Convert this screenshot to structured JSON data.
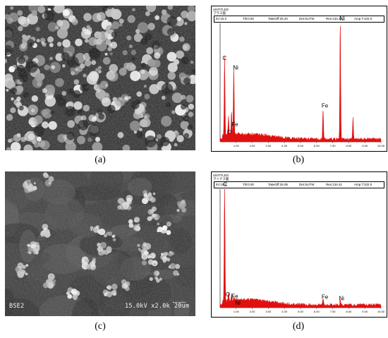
{
  "captions": {
    "a": "(a)",
    "b": "(b)",
    "c": "(c)",
    "d": "(d)"
  },
  "sem_c_overlay": {
    "detector": "BSE2",
    "info": "15.0kV x2.0k",
    "scale": "20um"
  },
  "spectrum_b": {
    "title": "UNTITLED",
    "subtitle": "プラス面",
    "kv": "kV:15.0",
    "tilt": "Tilt:0.00",
    "takeoff": "TakeOff:25.20",
    "det": "Det:SUTW",
    "res": "Res:134.41",
    "amp": "Amp.T:102.0",
    "x_ticks": [
      "1.00",
      "2.00",
      "3.00",
      "4.00",
      "5.00",
      "6.00",
      "7.00",
      "8.00",
      "9.00",
      "10.00"
    ],
    "labels": [
      "C",
      "O",
      "Fe",
      "Ni",
      "Fe",
      "Ni"
    ]
  },
  "spectrum_d": {
    "title": "UNTITLED",
    "subtitle": "マイナス面",
    "kv": "kV:15.0",
    "tilt": "Tilt:0.00",
    "takeoff": "TakeOff:25.08",
    "det": "Det:SUTW",
    "res": "Res:134.41",
    "amp": "Amp.T:102.0",
    "x_ticks": [
      "1.00",
      "2.00",
      "3.00",
      "4.00",
      "5.00",
      "6.00",
      "7.00",
      "8.00",
      "9.00",
      "10.00"
    ],
    "labels": [
      "C",
      "O",
      "Fe",
      "Ni",
      "Fe",
      "Ni"
    ]
  },
  "chart_data": [
    {
      "type": "line",
      "xlim": [
        0,
        10
      ],
      "ylim": [
        0,
        1
      ],
      "peaks": [
        {
          "label": "C",
          "x": 0.28,
          "y": 0.66
        },
        {
          "label": "O",
          "x": 0.52,
          "y": 0.16
        },
        {
          "label": "Fe",
          "x": 0.71,
          "y": 0.19
        },
        {
          "label": "Ni",
          "x": 0.85,
          "y": 0.58
        },
        {
          "label": "Fe",
          "x": 6.4,
          "y": 0.26
        },
        {
          "label": "Ni",
          "x": 7.47,
          "y": 1.0
        },
        {
          "label": "",
          "x": 8.26,
          "y": 0.18
        }
      ],
      "x_ticks": [
        "1.00",
        "2.00",
        "3.00",
        "4.00",
        "5.00",
        "6.00",
        "7.00",
        "8.00",
        "9.00",
        "10.00"
      ]
    },
    {
      "type": "line",
      "xlim": [
        0,
        10
      ],
      "ylim": [
        0,
        1
      ],
      "peaks": [
        {
          "label": "C",
          "x": 0.28,
          "y": 1.0
        },
        {
          "label": "O",
          "x": 0.52,
          "y": 0.07
        },
        {
          "label": "Fe",
          "x": 0.71,
          "y": 0.05
        },
        {
          "label": "Ni",
          "x": 0.85,
          "y": 0.03
        },
        {
          "label": "Fe",
          "x": 6.4,
          "y": 0.05
        },
        {
          "label": "Ni",
          "x": 7.47,
          "y": 0.04
        }
      ],
      "x_ticks": [
        "1.00",
        "2.00",
        "3.00",
        "4.00",
        "5.00",
        "6.00",
        "7.00",
        "8.00",
        "9.00",
        "10.00"
      ]
    }
  ]
}
